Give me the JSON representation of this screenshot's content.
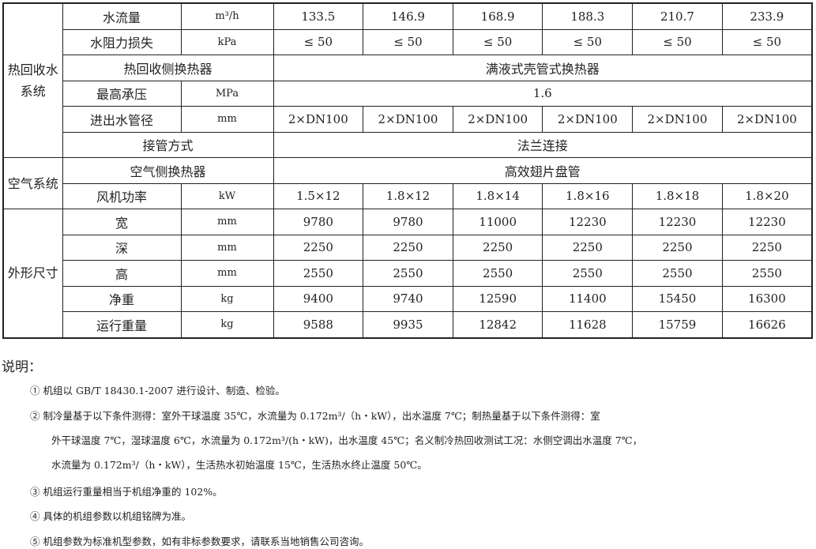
{
  "table": {
    "groups": {
      "heat_recovery": "热回收水系统",
      "air": "空气系统",
      "dimensions": "外形尺寸"
    },
    "rows": {
      "flow": {
        "label": "水流量",
        "unit": "m³/h",
        "values": [
          "133.5",
          "146.9",
          "168.9",
          "188.3",
          "210.7",
          "233.9"
        ]
      },
      "pressure_drop": {
        "label": "水阻力损失",
        "unit": "kPa",
        "values": [
          "≤ 50",
          "≤ 50",
          "≤ 50",
          "≤ 50",
          "≤ 50",
          "≤ 50"
        ]
      },
      "hr_exchanger": {
        "label": "热回收侧换热器",
        "value": "满液式壳管式换热器"
      },
      "max_pressure": {
        "label": "最高承压",
        "unit": "MPa",
        "value": "1.6"
      },
      "pipe_dia": {
        "label": "进出水管径",
        "unit": "mm",
        "values": [
          "2×DN100",
          "2×DN100",
          "2×DN100",
          "2×DN100",
          "2×DN100",
          "2×DN100"
        ]
      },
      "connection": {
        "label": "接管方式",
        "value": "法兰连接"
      },
      "air_exchanger": {
        "label": "空气侧换热器",
        "value": "高效翅片盘管"
      },
      "fan_power": {
        "label": "风机功率",
        "unit": "kW",
        "values": [
          "1.5×12",
          "1.8×12",
          "1.8×14",
          "1.8×16",
          "1.8×18",
          "1.8×20"
        ]
      },
      "width": {
        "label": "宽",
        "unit": "mm",
        "values": [
          "9780",
          "9780",
          "11000",
          "12230",
          "12230",
          "12230"
        ]
      },
      "depth": {
        "label": "深",
        "unit": "mm",
        "values": [
          "2250",
          "2250",
          "2250",
          "2250",
          "2250",
          "2250"
        ]
      },
      "height": {
        "label": "高",
        "unit": "mm",
        "values": [
          "2550",
          "2550",
          "2550",
          "2550",
          "2550",
          "2550"
        ]
      },
      "net_weight": {
        "label": "净重",
        "unit": "kg",
        "values": [
          "9400",
          "9740",
          "12590",
          "11400",
          "15450",
          "16300"
        ]
      },
      "op_weight": {
        "label": "运行重量",
        "unit": "kg",
        "values": [
          "9588",
          "9935",
          "12842",
          "11628",
          "15759",
          "16626"
        ]
      }
    }
  },
  "notes": {
    "title": "说明：",
    "items": [
      "① 机组以 GB/T 18430.1-2007 进行设计、制造、检验。",
      "② 制冷量基于以下条件测得：室外干球温度 35℃，水流量为 0.172m³/（h・kW），出水温度 7℃；制热量基于以下条件测得：室",
      "外干球温度 7℃，湿球温度 6℃，水流量为 0.172m³/(h・kW)，出水温度 45℃；名义制冷热回收测试工况：水侧空调出水温度 7℃，",
      "水流量为 0.172m³/（h・kW），生活热水初始温度 15℃，生活热水终止温度 50℃。",
      "③ 机组运行重量相当于机组净重的 102%。",
      "④ 具体的机组参数以机组铭牌为准。",
      "⑤ 机组参数为标准机型参数，如有非标参数要求，请联系当地销售公司咨询。"
    ]
  }
}
